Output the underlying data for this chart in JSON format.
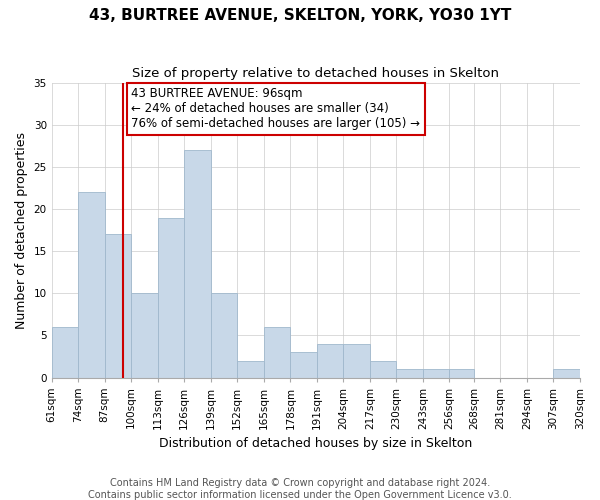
{
  "title": "43, BURTREE AVENUE, SKELTON, YORK, YO30 1YT",
  "subtitle": "Size of property relative to detached houses in Skelton",
  "xlabel": "Distribution of detached houses by size in Skelton",
  "ylabel": "Number of detached properties",
  "bin_edges": [
    61,
    74,
    87,
    100,
    113,
    126,
    139,
    152,
    165,
    178,
    191,
    204,
    217,
    230,
    243,
    256,
    268,
    281,
    294,
    307,
    320
  ],
  "bar_heights": [
    6,
    22,
    17,
    10,
    19,
    27,
    10,
    2,
    6,
    3,
    4,
    4,
    2,
    1,
    1,
    1,
    0,
    0,
    0,
    1
  ],
  "bar_color": "#c8d8e8",
  "bar_edgecolor": "#a0b8cc",
  "vline_x": 96,
  "vline_color": "#cc0000",
  "ylim": [
    0,
    35
  ],
  "yticks": [
    0,
    5,
    10,
    15,
    20,
    25,
    30,
    35
  ],
  "annotation_title": "43 BURTREE AVENUE: 96sqm",
  "annotation_line1": "← 24% of detached houses are smaller (34)",
  "annotation_line2": "76% of semi-detached houses are larger (105) →",
  "annotation_box_color": "#ffffff",
  "annotation_box_edgecolor": "#cc0000",
  "footer1": "Contains HM Land Registry data © Crown copyright and database right 2024.",
  "footer2": "Contains public sector information licensed under the Open Government Licence v3.0.",
  "title_fontsize": 11,
  "subtitle_fontsize": 9.5,
  "axis_label_fontsize": 9,
  "tick_fontsize": 7.5,
  "footer_fontsize": 7,
  "annotation_fontsize": 8.5
}
